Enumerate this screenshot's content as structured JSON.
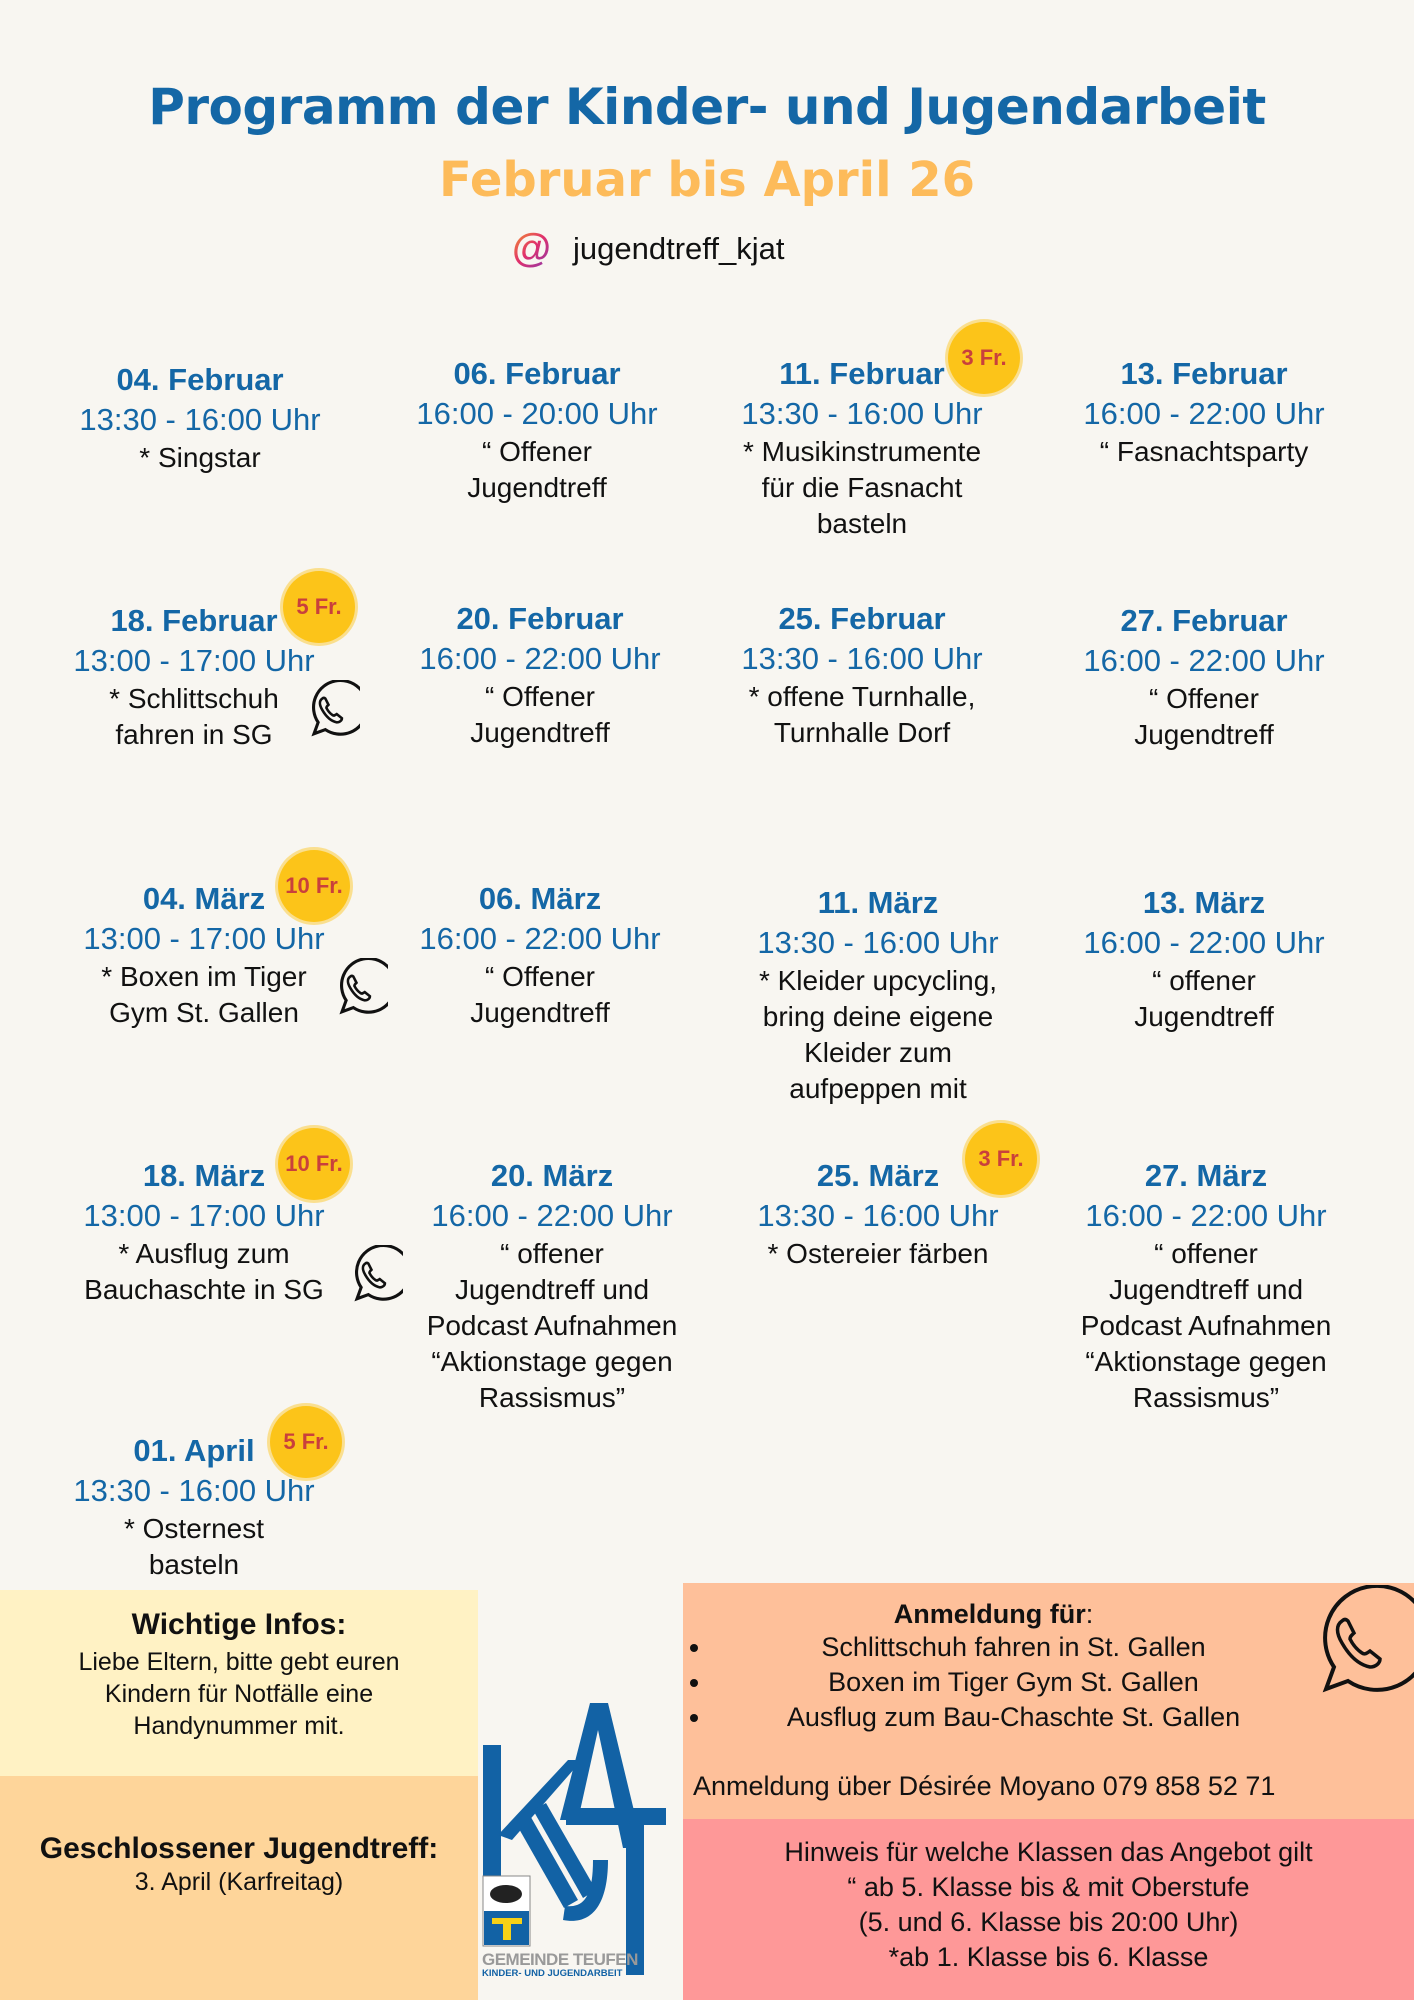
{
  "header": {
    "title": "Programm der Kinder- und Jugendarbeit",
    "subtitle": "Februar bis April 26",
    "social_icon": "instagram-at-icon",
    "social_at": "@",
    "social_handle": "jugendtreff_kjat"
  },
  "events": [
    {
      "date": "04. Februar",
      "time": "13:30 - 16:00 Uhr",
      "desc": "* Singstar"
    },
    {
      "date": "06. Februar",
      "time": "16:00 - 20:00 Uhr",
      "desc": "“ Offener\nJugendtreff"
    },
    {
      "date": "11. Februar",
      "time": "13:30 - 16:00 Uhr",
      "desc": "* Musikinstrumente\nfür die Fasnacht\nbasteln",
      "badge": "3 Fr."
    },
    {
      "date": "13. Februar",
      "time": "16:00 - 22:00 Uhr",
      "desc": "“ Fasnachtsparty"
    },
    {
      "date": "18. Februar",
      "time": "13:00 - 17:00 Uhr",
      "desc": "* Schlittschuh\nfahren in SG",
      "badge": "5 Fr.",
      "whatsapp": true
    },
    {
      "date": "20. Februar",
      "time": "16:00 - 22:00 Uhr",
      "desc": "“ Offener\nJugendtreff"
    },
    {
      "date": "25. Februar",
      "time": "13:30 - 16:00 Uhr",
      "desc": "* offene Turnhalle,\nTurnhalle Dorf"
    },
    {
      "date": "27. Februar",
      "time": "16:00 - 22:00 Uhr",
      "desc": "“ Offener\nJugendtreff"
    },
    {
      "date": "04. März",
      "time": "13:00 - 17:00 Uhr",
      "desc": "* Boxen im Tiger\nGym St. Gallen",
      "badge": "10 Fr.",
      "whatsapp": true
    },
    {
      "date": "06. März",
      "time": "16:00 - 22:00 Uhr",
      "desc": "“ Offener\nJugendtreff"
    },
    {
      "date": "11. März",
      "time": "13:30 - 16:00 Uhr",
      "desc": "* Kleider upcycling,\nbring deine eigene\nKleider zum\naufpeppen mit"
    },
    {
      "date": "13. März",
      "time": "16:00 - 22:00 Uhr",
      "desc": "“ offener\nJugendtreff"
    },
    {
      "date": "18. März",
      "time": "13:00 - 17:00 Uhr",
      "desc": "* Ausflug zum\nBauchaschte in SG",
      "badge": "10 Fr.",
      "whatsapp": true
    },
    {
      "date": "20. März",
      "time": "16:00 - 22:00 Uhr",
      "desc": "“ offener\nJugendtreff und\nPodcast Aufnahmen\n“Aktionstage gegen\nRassismus”"
    },
    {
      "date": "25. März",
      "time": "13:30 - 16:00 Uhr",
      "desc": "* Ostereier färben",
      "badge": "3 Fr."
    },
    {
      "date": "27. März",
      "time": "16:00 - 22:00 Uhr",
      "desc": "“ offener\nJugendtreff und\nPodcast Aufnahmen\n“Aktionstage gegen\nRassismus”"
    },
    {
      "date": "01. April",
      "time": "13:30 - 16:00 Uhr",
      "desc": "* Osternest\nbasteln",
      "badge": "5 Fr."
    }
  ],
  "info": {
    "heading": "Wichtige Infos:",
    "text": "Liebe Eltern, bitte gebt euren\nKindern für Notfälle eine\nHandynummer mit."
  },
  "closed": {
    "heading": "Geschlossener Jugendtreff:",
    "text": "3. April (Karfreitag)"
  },
  "registration": {
    "heading": "Anmeldung für",
    "colon": ":",
    "items": [
      "Schlittschuh fahren in St. Gallen",
      "Boxen im Tiger Gym St. Gallen",
      "Ausflug zum Bau-Chaschte St. Gallen"
    ],
    "contact": "Anmeldung über Désirée Moyano 079 858 52 71"
  },
  "notes": {
    "heading": "Hinweis für welche Klassen das Angebot gilt",
    "lines": [
      "“ ab 5. Klasse bis & mit Oberstufe",
      "(5. und 6. Klasse bis 20:00 Uhr)",
      "*ab 1. Klasse bis 6. Klasse"
    ]
  },
  "logo": {
    "letters": "KAJT",
    "municipality": "GEMEINDE TEUFEN",
    "department": "KINDER- UND JUGENDARBEIT"
  },
  "colors": {
    "blue": "#1467a6",
    "orange": "#fdbb5a",
    "badge": "#fcc419",
    "badge_text": "#c9403c"
  }
}
